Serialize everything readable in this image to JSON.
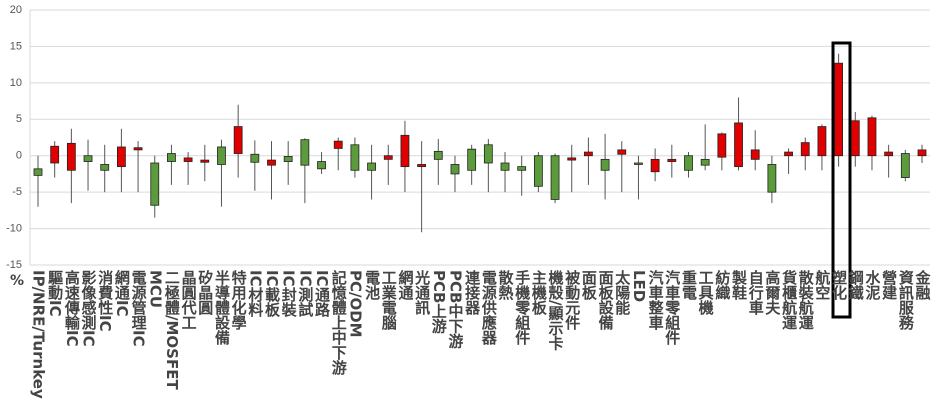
{
  "chart_data": {
    "type": "candlestick",
    "ylabel": "%",
    "categories": [
      "IP/NRE/Turnkey",
      "驅動IC",
      "高速傳輸IC",
      "影像感測IC",
      "消費性IC",
      "網通IC",
      "電源管理IC",
      "MCU",
      "二極體/MOSFET",
      "晶圓代工",
      "矽晶圓",
      "半導體設備",
      "特用化學",
      "IC材料",
      "IC載板",
      "IC封裝",
      "IC測試",
      "IC通路",
      "記憶體上中下游",
      "PC/ODM",
      "電池",
      "工業電腦",
      "網通",
      "光通訊",
      "PCB上游",
      "PCB中下游",
      "連接器",
      "電源供應器",
      "散熱",
      "手機零組件",
      "主機板",
      "機殼/顯示卡",
      "被動元件",
      "面板",
      "面板設備",
      "太陽能",
      "LED",
      "汽車整車",
      "汽車零組件",
      "重電",
      "工具機",
      "紡織",
      "製鞋",
      "自行車",
      "高爾夫",
      "貨櫃航運",
      "散裝航運",
      "航空",
      "塑化",
      "鋼鐵",
      "水泥",
      "營建",
      "資訊服務",
      "金融"
    ],
    "open": [
      -1.8,
      -1,
      -2,
      0,
      -1.2,
      -1.5,
      0.8,
      -1,
      0.3,
      -0.8,
      -0.9,
      1.2,
      0.3,
      0.2,
      -1.3,
      -0.1,
      2.2,
      -0.8,
      1,
      1.5,
      -1,
      -0.5,
      -1.5,
      -1.5,
      0.6,
      -1.2,
      0.9,
      1.5,
      -1,
      -1.5,
      0,
      0,
      -0.6,
      0,
      -0.5,
      0.2,
      -1,
      -2.2,
      -0.8,
      0,
      -0.5,
      -0.2,
      -1.5,
      -0.5,
      -1.2,
      0,
      0,
      0,
      0,
      0,
      0,
      0,
      0.3,
      0
    ],
    "close": [
      -2.7,
      1.3,
      1.7,
      -0.8,
      -2,
      1.2,
      1.1,
      -6.8,
      -0.8,
      -0.3,
      -0.6,
      -1.2,
      4,
      -0.9,
      -0.6,
      -0.8,
      -1.3,
      -1.8,
      2,
      -2,
      -2,
      0,
      2.8,
      -1.2,
      -0.5,
      -2.5,
      -2,
      -1,
      -2,
      -2,
      -4.2,
      -6,
      -0.3,
      0.5,
      -2,
      0.8,
      -1.2,
      -0.5,
      -0.5,
      -2,
      -1.3,
      3,
      4.5,
      0.8,
      -5,
      0.5,
      1.8,
      4,
      12.7,
      4.8,
      5.2,
      0.5,
      -3,
      0.8
    ],
    "high": [
      0,
      2,
      3.7,
      2.2,
      1.5,
      3.7,
      2,
      0,
      1.5,
      0.5,
      1.5,
      2.2,
      7,
      2.1,
      2,
      2,
      2.4,
      0.5,
      2.5,
      2.5,
      1.5,
      1.5,
      4.8,
      2,
      2.3,
      0,
      1.5,
      2.3,
      0.5,
      0,
      0.5,
      0.3,
      1.5,
      2.5,
      3,
      2,
      0,
      1,
      1.5,
      0.5,
      4.3,
      3.2,
      8,
      3.5,
      0,
      1,
      2.5,
      4.3,
      14,
      6,
      5.5,
      1.5,
      0.8,
      1.5
    ],
    "low": [
      -7,
      -3,
      -6.5,
      -4.8,
      -5,
      -5,
      -5,
      -8.5,
      -4,
      -4,
      -3.5,
      -7,
      -3,
      -4.8,
      -6,
      -4,
      -6.5,
      -2.5,
      -2,
      -3,
      -6,
      -4,
      -5,
      -10.5,
      -4,
      -5,
      -4,
      -5,
      -5,
      -5.5,
      -5,
      -6.5,
      -5,
      -4,
      -6,
      -5,
      -6,
      -3.5,
      -3,
      -3,
      -2,
      -2,
      -2,
      -2,
      -6.5,
      -2.5,
      -2,
      -2,
      -1.5,
      -1.5,
      -2,
      -3,
      -3.5,
      -1
    ],
    "up_color": "#e00000",
    "down_color": "#5b9b3c",
    "ylim": [
      -15,
      20
    ],
    "yticks": [
      -15,
      -10,
      -5,
      0,
      5,
      10,
      15,
      20
    ],
    "grid": true
  }
}
